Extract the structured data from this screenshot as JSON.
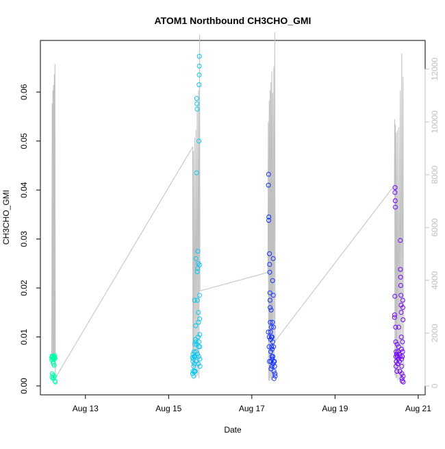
{
  "chart_data": {
    "type": "scatter",
    "title": "ATOM1 Northbound CH3CHO_GMI",
    "xlabel": "Date",
    "ylabel": "CH3CHO_GMI",
    "y2label": "",
    "xlim": [
      "2016-08-11T22:00",
      "2016-08-21T04:00"
    ],
    "ylim": [
      0,
      0.069
    ],
    "y2lim": [
      0,
      12800
    ],
    "x_ticks": [
      {
        "date": "2016-08-13",
        "label": "Aug 13"
      },
      {
        "date": "2016-08-15",
        "label": "Aug 15"
      },
      {
        "date": "2016-08-17",
        "label": "Aug 17"
      },
      {
        "date": "2016-08-19",
        "label": "Aug 19"
      },
      {
        "date": "2016-08-21",
        "label": "Aug 21"
      }
    ],
    "y_ticks": [
      {
        "value": 0.0,
        "label": "0.00"
      },
      {
        "value": 0.01,
        "label": "0.01"
      },
      {
        "value": 0.02,
        "label": "0.02"
      },
      {
        "value": 0.03,
        "label": "0.03"
      },
      {
        "value": 0.04,
        "label": "0.04"
      },
      {
        "value": 0.05,
        "label": "0.05"
      },
      {
        "value": 0.06,
        "label": "0.06"
      }
    ],
    "y2_ticks": [
      {
        "value": 0,
        "label": "0"
      },
      {
        "value": 2000,
        "label": "2000"
      },
      {
        "value": 4000,
        "label": "4000"
      },
      {
        "value": 6000,
        "label": "6000"
      },
      {
        "value": 8000,
        "label": "8000"
      },
      {
        "value": 10000,
        "label": "10000"
      },
      {
        "value": 12000,
        "label": "12000"
      }
    ],
    "colors": {
      "flight1": "#00ffa8",
      "flight2": "#00c8f0",
      "flight3": "#1030ff",
      "flight4": "#7000ff",
      "altitude": "#c0c0c0",
      "axis": "#000000",
      "axis2": "#bfbfbf"
    },
    "grid": false,
    "legend": "none",
    "altitude_series": [
      [
        "2016-08-12T04:30",
        1000
      ],
      [
        "2016-08-12T04:48",
        10700
      ],
      [
        "2016-08-12T05:00",
        800
      ],
      [
        "2016-08-12T05:12",
        11200
      ],
      [
        "2016-08-12T05:24",
        900
      ],
      [
        "2016-08-12T05:36",
        11400
      ],
      [
        "2016-08-12T05:48",
        1000
      ],
      [
        "2016-08-12T06:00",
        11800
      ],
      [
        "2016-08-12T06:12",
        700
      ],
      [
        "2016-08-12T06:24",
        12200
      ],
      [
        "2016-08-12T06:40",
        300
      ],
      [
        "2016-08-15T13:50",
        9050
      ],
      [
        "2016-08-15T14:00",
        500
      ],
      [
        "2016-08-15T14:15",
        8900
      ],
      [
        "2016-08-15T14:30",
        400
      ],
      [
        "2016-08-15T15:00",
        9400
      ],
      [
        "2016-08-15T15:15",
        300
      ],
      [
        "2016-08-15T15:45",
        9700
      ],
      [
        "2016-08-15T16:00",
        400
      ],
      [
        "2016-08-15T16:30",
        10700
      ],
      [
        "2016-08-15T16:45",
        400
      ],
      [
        "2016-08-15T17:15",
        11200
      ],
      [
        "2016-08-15T17:30",
        300
      ],
      [
        "2016-08-15T17:50",
        13300
      ],
      [
        "2016-08-15T18:05",
        3600
      ],
      [
        "2016-08-17T09:15",
        4300
      ],
      [
        "2016-08-17T09:30",
        10000
      ],
      [
        "2016-08-17T09:40",
        200
      ],
      [
        "2016-08-17T10:00",
        10800
      ],
      [
        "2016-08-17T10:10",
        200
      ],
      [
        "2016-08-17T10:30",
        11200
      ],
      [
        "2016-08-17T10:40",
        300
      ],
      [
        "2016-08-17T11:00",
        11500
      ],
      [
        "2016-08-17T11:10",
        200
      ],
      [
        "2016-08-17T11:30",
        11900
      ],
      [
        "2016-08-17T11:40",
        300
      ],
      [
        "2016-08-17T12:00",
        11100
      ],
      [
        "2016-08-17T12:10",
        300
      ],
      [
        "2016-08-17T12:40",
        12100
      ],
      [
        "2016-08-17T12:50",
        400
      ],
      [
        "2016-08-17T13:15",
        13400
      ],
      [
        "2016-08-17T13:30",
        1700
      ],
      [
        "2016-08-20T10:15",
        7600
      ],
      [
        "2016-08-20T10:25",
        10100
      ],
      [
        "2016-08-20T10:35",
        400
      ],
      [
        "2016-08-20T10:50",
        9900
      ],
      [
        "2016-08-20T11:05",
        300
      ],
      [
        "2016-08-20T11:20",
        9600
      ],
      [
        "2016-08-20T11:35",
        300
      ],
      [
        "2016-08-20T12:00",
        9700
      ],
      [
        "2016-08-20T12:15",
        200
      ],
      [
        "2016-08-20T12:50",
        9800
      ],
      [
        "2016-08-20T13:05",
        200
      ],
      [
        "2016-08-20T13:40",
        11200
      ],
      [
        "2016-08-20T13:55",
        300
      ],
      [
        "2016-08-20T14:30",
        12600
      ],
      [
        "2016-08-20T14:45",
        200
      ],
      [
        "2016-08-20T15:15",
        11700
      ],
      [
        "2016-08-20T15:30",
        800
      ]
    ],
    "series": [
      {
        "id": "flight1",
        "points": [
          [
            "2016-08-12T04:30",
            0.0058
          ],
          [
            "2016-08-12T04:36",
            0.0053
          ],
          [
            "2016-08-12T04:42",
            0.0018
          ],
          [
            "2016-08-12T04:48",
            0.0061
          ],
          [
            "2016-08-12T04:54",
            0.0025
          ],
          [
            "2016-08-12T05:00",
            0.006
          ],
          [
            "2016-08-12T05:06",
            0.0055
          ],
          [
            "2016-08-12T05:12",
            0.0015
          ],
          [
            "2016-08-12T05:18",
            0.0048
          ],
          [
            "2016-08-12T05:24",
            0.0022
          ],
          [
            "2016-08-12T05:30",
            0.0058
          ],
          [
            "2016-08-12T05:36",
            0.0045
          ],
          [
            "2016-08-12T05:42",
            0.0017
          ],
          [
            "2016-08-12T05:48",
            0.0055
          ],
          [
            "2016-08-12T05:54",
            0.006
          ],
          [
            "2016-08-12T06:00",
            0.0042
          ],
          [
            "2016-08-12T06:06",
            0.002
          ],
          [
            "2016-08-12T06:12",
            0.0058
          ],
          [
            "2016-08-12T06:18",
            0.0062
          ],
          [
            "2016-08-12T06:24",
            0.001
          ],
          [
            "2016-08-12T06:30",
            0.0056
          ],
          [
            "2016-08-12T06:36",
            0.0008
          ]
        ]
      },
      {
        "id": "flight2",
        "points": [
          [
            "2016-08-15T13:45",
            0.0058
          ],
          [
            "2016-08-15T13:52",
            0.0025
          ],
          [
            "2016-08-15T14:00",
            0.005
          ],
          [
            "2016-08-15T14:08",
            0.003
          ],
          [
            "2016-08-15T14:15",
            0.0055
          ],
          [
            "2016-08-15T14:22",
            0.004
          ],
          [
            "2016-08-15T14:30",
            0.002
          ],
          [
            "2016-08-15T14:37",
            0.006
          ],
          [
            "2016-08-15T14:45",
            0.0045
          ],
          [
            "2016-08-15T14:52",
            0.003
          ],
          [
            "2016-08-15T15:00",
            0.0175
          ],
          [
            "2016-08-15T15:07",
            0.0085
          ],
          [
            "2016-08-15T15:15",
            0.006
          ],
          [
            "2016-08-15T15:22",
            0.003
          ],
          [
            "2016-08-15T15:30",
            0.009
          ],
          [
            "2016-08-15T15:37",
            0.0123
          ],
          [
            "2016-08-15T15:45",
            0.026
          ],
          [
            "2016-08-15T15:52",
            0.007
          ],
          [
            "2016-08-15T16:00",
            0.005
          ],
          [
            "2016-08-15T16:07",
            0.0435
          ],
          [
            "2016-08-15T16:14",
            0.0587
          ],
          [
            "2016-08-15T16:20",
            0.0576
          ],
          [
            "2016-08-15T16:25",
            0.0565
          ],
          [
            "2016-08-15T16:30",
            0.0233
          ],
          [
            "2016-08-15T16:37",
            0.0175
          ],
          [
            "2016-08-15T16:45",
            0.024
          ],
          [
            "2016-08-15T16:52",
            0.0275
          ],
          [
            "2016-08-15T17:00",
            0.01
          ],
          [
            "2016-08-15T17:05",
            0.025
          ],
          [
            "2016-08-15T17:10",
            0.015
          ],
          [
            "2016-08-15T17:15",
            0.013
          ],
          [
            "2016-08-15T17:20",
            0.008
          ],
          [
            "2016-08-15T17:25",
            0.006
          ],
          [
            "2016-08-15T17:30",
            0.05
          ],
          [
            "2016-08-15T17:35",
            0.0615
          ],
          [
            "2016-08-15T17:38",
            0.0635
          ],
          [
            "2016-08-15T17:41",
            0.0653
          ],
          [
            "2016-08-15T17:44",
            0.0673
          ],
          [
            "2016-08-15T17:47",
            0.0247
          ],
          [
            "2016-08-15T17:50",
            0.0185
          ],
          [
            "2016-08-15T17:53",
            0.0137
          ],
          [
            "2016-08-15T17:56",
            0.0105
          ],
          [
            "2016-08-15T17:59",
            0.008
          ],
          [
            "2016-08-15T18:02",
            0.0055
          ],
          [
            "2016-08-15T18:05",
            0.004
          ],
          [
            "2016-08-15T14:05",
            0.0065
          ],
          [
            "2016-08-15T14:40",
            0.007
          ],
          [
            "2016-08-15T15:25",
            0.0095
          ],
          [
            "2016-08-15T16:10",
            0.0085
          ],
          [
            "2016-08-15T16:40",
            0.0065
          ],
          [
            "2016-08-15T17:08",
            0.0045
          ],
          [
            "2016-08-15T17:33",
            0.009
          ]
        ]
      },
      {
        "id": "flight3",
        "points": [
          [
            "2016-08-17T09:30",
            0.011
          ],
          [
            "2016-08-17T09:35",
            0.041
          ],
          [
            "2016-08-17T09:40",
            0.0432
          ],
          [
            "2016-08-17T09:45",
            0.0338
          ],
          [
            "2016-08-17T09:50",
            0.0345
          ],
          [
            "2016-08-17T09:55",
            0.008
          ],
          [
            "2016-08-17T10:00",
            0.01
          ],
          [
            "2016-08-17T10:05",
            0.005
          ],
          [
            "2016-08-17T10:10",
            0.027
          ],
          [
            "2016-08-17T10:15",
            0.0248
          ],
          [
            "2016-08-17T10:20",
            0.0232
          ],
          [
            "2016-08-17T10:25",
            0.019
          ],
          [
            "2016-08-17T10:30",
            0.0175
          ],
          [
            "2016-08-17T10:35",
            0.016
          ],
          [
            "2016-08-17T10:40",
            0.013
          ],
          [
            "2016-08-17T10:45",
            0.011
          ],
          [
            "2016-08-17T10:50",
            0.0095
          ],
          [
            "2016-08-17T10:55",
            0.007
          ],
          [
            "2016-08-17T11:00",
            0.005
          ],
          [
            "2016-08-17T11:05",
            0.0035
          ],
          [
            "2016-08-17T11:10",
            0.0155
          ],
          [
            "2016-08-17T11:15",
            0.012
          ],
          [
            "2016-08-17T11:20",
            0.01
          ],
          [
            "2016-08-17T11:25",
            0.008
          ],
          [
            "2016-08-17T11:30",
            0.006
          ],
          [
            "2016-08-17T11:35",
            0.004
          ],
          [
            "2016-08-17T11:40",
            0.01
          ],
          [
            "2016-08-17T11:45",
            0.0075
          ],
          [
            "2016-08-17T11:50",
            0.0055
          ],
          [
            "2016-08-17T11:55",
            0.013
          ],
          [
            "2016-08-17T12:00",
            0.0215
          ],
          [
            "2016-08-17T12:05",
            0.009
          ],
          [
            "2016-08-17T12:10",
            0.006
          ],
          [
            "2016-08-17T12:15",
            0.0045
          ],
          [
            "2016-08-17T12:20",
            0.026
          ],
          [
            "2016-08-17T12:25",
            0.0185
          ],
          [
            "2016-08-17T12:30",
            0.012
          ],
          [
            "2016-08-17T12:35",
            0.008
          ],
          [
            "2016-08-17T12:40",
            0.005
          ],
          [
            "2016-08-17T12:45",
            0.003
          ],
          [
            "2016-08-17T12:50",
            0.0015
          ],
          [
            "2016-08-17T13:00",
            0.005
          ],
          [
            "2016-08-17T13:10",
            0.004
          ],
          [
            "2016-08-17T13:20",
            0.0025
          ],
          [
            "2016-08-17T13:30",
            0.002
          ]
        ]
      },
      {
        "id": "flight4",
        "points": [
          [
            "2016-08-20T10:20",
            0.014
          ],
          [
            "2016-08-20T10:25",
            0.0145
          ],
          [
            "2016-08-20T10:30",
            0.0183
          ],
          [
            "2016-08-20T10:35",
            0.0395
          ],
          [
            "2016-08-20T10:40",
            0.0405
          ],
          [
            "2016-08-20T10:45",
            0.0378
          ],
          [
            "2016-08-20T10:50",
            0.0365
          ],
          [
            "2016-08-20T10:55",
            0.012
          ],
          [
            "2016-08-20T11:00",
            0.009
          ],
          [
            "2016-08-20T11:05",
            0.006
          ],
          [
            "2016-08-20T11:10",
            0.004
          ],
          [
            "2016-08-20T11:15",
            0.007
          ],
          [
            "2016-08-20T11:20",
            0.005
          ],
          [
            "2016-08-20T11:30",
            0.0065
          ],
          [
            "2016-08-20T11:40",
            0.003
          ],
          [
            "2016-08-20T11:50",
            0.0085
          ],
          [
            "2016-08-20T12:00",
            0.006
          ],
          [
            "2016-08-20T12:10",
            0.0045
          ],
          [
            "2016-08-20T12:20",
            0.007
          ],
          [
            "2016-08-20T12:30",
            0.0055
          ],
          [
            "2016-08-20T12:40",
            0.008
          ],
          [
            "2016-08-20T12:50",
            0.012
          ],
          [
            "2016-08-20T13:00",
            0.0065
          ],
          [
            "2016-08-20T13:10",
            0.005
          ],
          [
            "2016-08-20T13:20",
            0.003
          ],
          [
            "2016-08-20T13:30",
            0.006
          ],
          [
            "2016-08-20T13:40",
            0.0297
          ],
          [
            "2016-08-20T13:45",
            0.0238
          ],
          [
            "2016-08-20T13:50",
            0.0222
          ],
          [
            "2016-08-20T13:55",
            0.0205
          ],
          [
            "2016-08-20T14:00",
            0.0185
          ],
          [
            "2016-08-20T14:05",
            0.0165
          ],
          [
            "2016-08-20T14:10",
            0.015
          ],
          [
            "2016-08-20T14:15",
            0.01
          ],
          [
            "2016-08-20T14:20",
            0.0075
          ],
          [
            "2016-08-20T14:25",
            0.0055
          ],
          [
            "2016-08-20T14:30",
            0.004
          ],
          [
            "2016-08-20T14:35",
            0.0025
          ],
          [
            "2016-08-20T14:40",
            0.0015
          ],
          [
            "2016-08-20T14:45",
            0.001
          ],
          [
            "2016-08-20T14:50",
            0.006
          ],
          [
            "2016-08-20T14:55",
            0.009
          ],
          [
            "2016-08-20T15:00",
            0.007
          ],
          [
            "2016-08-20T15:05",
            0.0175
          ],
          [
            "2016-08-20T15:10",
            0.016
          ],
          [
            "2016-08-20T15:15",
            0.0135
          ],
          [
            "2016-08-20T15:20",
            0.002
          ],
          [
            "2016-08-20T15:25",
            0.0008
          ]
        ]
      }
    ]
  }
}
